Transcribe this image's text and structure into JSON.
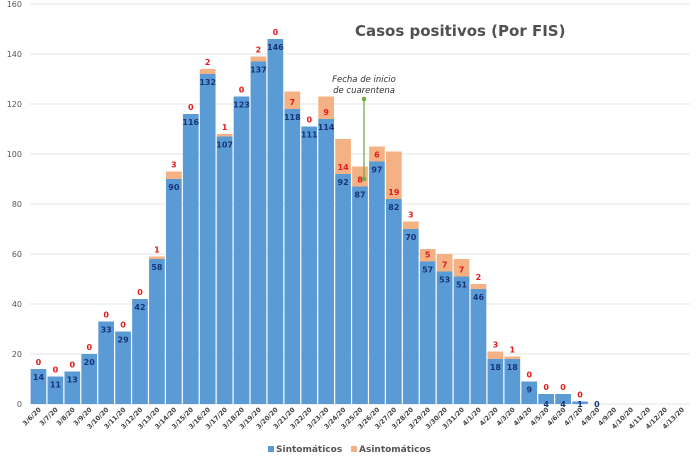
{
  "chart_data": {
    "type": "bar",
    "stacked": true,
    "title": "Casos positivos (Por FIS)",
    "xlabel": "",
    "ylabel": "",
    "ylim": [
      0,
      160
    ],
    "yticks": [
      0,
      20,
      40,
      60,
      80,
      100,
      120,
      140,
      160
    ],
    "grid": true,
    "legend_position": "bottom",
    "categories": [
      "3/6/20",
      "3/7/20",
      "3/8/20",
      "3/9/20",
      "3/10/20",
      "3/11/20",
      "3/12/20",
      "3/13/20",
      "3/14/20",
      "3/15/20",
      "3/16/20",
      "3/17/20",
      "3/18/20",
      "3/19/20",
      "3/20/20",
      "3/21/20",
      "3/22/20",
      "3/23/20",
      "3/24/20",
      "3/25/20",
      "3/26/20",
      "3/27/20",
      "3/28/20",
      "3/29/20",
      "3/30/20",
      "3/31/20",
      "4/1/20",
      "4/2/20",
      "4/3/20",
      "4/4/20",
      "4/5/20",
      "4/6/20",
      "4/7/20",
      "4/8/20",
      "4/9/20",
      "4/10/20",
      "4/11/20",
      "4/12/20",
      "4/13/20"
    ],
    "series": [
      {
        "name": "Sintomáticos",
        "color": "#5b9bd5",
        "values": [
          14,
          11,
          13,
          20,
          33,
          29,
          42,
          58,
          90,
          116,
          132,
          107,
          123,
          137,
          146,
          118,
          111,
          114,
          92,
          87,
          97,
          82,
          70,
          57,
          53,
          51,
          46,
          18,
          18,
          9,
          4,
          4,
          1,
          0,
          null,
          null,
          null,
          null,
          null
        ],
        "labels": [
          "14",
          "11",
          "13",
          "20",
          "33",
          "29",
          "42",
          "58",
          "90",
          "116",
          "132",
          "107",
          "123",
          "137",
          "146",
          "118",
          "111",
          "114",
          "92",
          "87",
          "97",
          "82",
          "70",
          "57",
          "53",
          "51",
          "46",
          "18",
          "18",
          "9",
          "4",
          "4",
          "1",
          "0",
          "",
          "",
          "",
          "",
          ""
        ]
      },
      {
        "name": "Asintomáticos",
        "color": "#f4b183",
        "values": [
          0,
          0,
          0,
          0,
          0,
          0,
          0,
          1,
          3,
          0,
          2,
          1,
          0,
          2,
          0,
          7,
          0,
          9,
          14,
          8,
          6,
          19,
          3,
          5,
          7,
          7,
          2,
          3,
          1,
          0,
          0,
          0,
          0,
          null,
          null,
          null,
          null,
          null,
          null
        ],
        "labels": [
          "0",
          "0",
          "0",
          "0",
          "0",
          "0",
          "0",
          "1",
          "3",
          "0",
          "2",
          "1",
          "0",
          "2",
          "0",
          "7",
          "0",
          "9",
          "14",
          "8",
          "6",
          "19",
          "3",
          "5",
          "7",
          "7",
          "2",
          "3",
          "1",
          "0",
          "0",
          "0",
          "0",
          "",
          "",
          "",
          "",
          "",
          ""
        ]
      }
    ],
    "annotations": [
      {
        "text_line1": "Fecha de inicio",
        "text_line2": "de cuarentena",
        "category": "3/25/20",
        "y_from": 90,
        "y_to": 122,
        "color": "#70ad47"
      }
    ]
  }
}
